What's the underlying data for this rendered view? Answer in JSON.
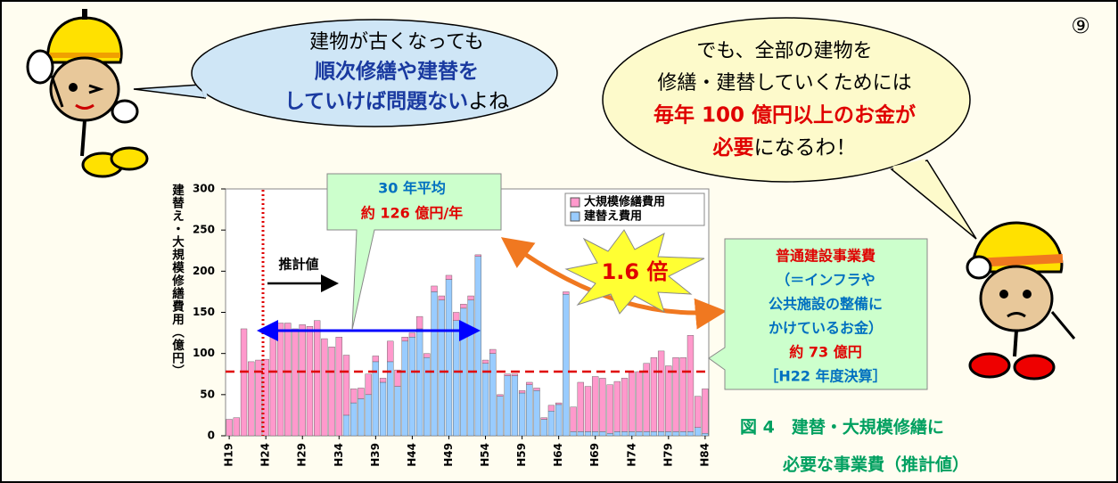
{
  "page_number": "⑨",
  "bubble_left": {
    "line1": "建物が古くなっても",
    "line2": "順次修繕や建替を",
    "line3_bold": "していけば問題ない",
    "line3_tail": "よね"
  },
  "bubble_right": {
    "line1": "でも、全部の建物を",
    "line2": "修繕・建替していくためには",
    "line3": "毎年 100 億円以上のお金が",
    "line4_bold": "必要",
    "line4_tail": "になるわ！"
  },
  "caption": [
    "図 4　建替・大規模修繕に",
    "必要な事業費（推計値）"
  ],
  "chart_data": {
    "type": "bar",
    "stacked": true,
    "y_label": "建替え・大規模修繕費用（億円）",
    "categories": [
      "H19",
      null,
      null,
      null,
      null,
      "H24",
      null,
      null,
      null,
      null,
      "H29",
      null,
      null,
      null,
      null,
      "H34",
      null,
      null,
      null,
      null,
      "H39",
      null,
      null,
      null,
      null,
      "H44",
      null,
      null,
      null,
      null,
      "H49",
      null,
      null,
      null,
      null,
      "H54",
      null,
      null,
      null,
      null,
      "H59",
      null,
      null,
      null,
      null,
      "H64",
      null,
      null,
      null,
      null,
      "H69",
      null,
      null,
      null,
      null,
      "H74",
      null,
      null,
      null,
      null,
      "H79",
      null,
      null,
      null,
      null,
      "H84"
    ],
    "series": [
      {
        "name": "大規模修繕費用",
        "color": "#ff99cc",
        "values": [
          20,
          22,
          130,
          90,
          92,
          93,
          135,
          137,
          137,
          130,
          135,
          133,
          140,
          118,
          108,
          120,
          73,
          17,
          13,
          25,
          7,
          5,
          25,
          20,
          5,
          5,
          15,
          5,
          7,
          5,
          5,
          10,
          5,
          5,
          2,
          4,
          5,
          2,
          2,
          2,
          3,
          3,
          3,
          2,
          7,
          2,
          3,
          30,
          60,
          55,
          67,
          65,
          59,
          61,
          65,
          73,
          73,
          83,
          90,
          98,
          80,
          90,
          90,
          117,
          38,
          54
        ]
      },
      {
        "name": "建替え費用",
        "color": "#99ccff",
        "values": [
          0,
          0,
          0,
          0,
          0,
          0,
          0,
          0,
          0,
          0,
          0,
          0,
          0,
          0,
          0,
          0,
          25,
          40,
          45,
          50,
          90,
          65,
          90,
          60,
          115,
          120,
          130,
          95,
          175,
          165,
          190,
          140,
          155,
          165,
          218,
          88,
          100,
          48,
          73,
          73,
          52,
          62,
          55,
          20,
          30,
          38,
          172,
          5,
          5,
          5,
          5,
          5,
          3,
          5,
          5,
          5,
          5,
          5,
          5,
          5,
          5,
          5,
          5,
          5,
          10,
          3
        ]
      }
    ],
    "ylim": [
      0,
      300
    ],
    "yticks": [
      0,
      50,
      100,
      150,
      200,
      250,
      300
    ],
    "reference_line": 78,
    "estimate_label": "推計値",
    "average_box": [
      "30 年平均",
      "約 126 億円/年"
    ],
    "ratio_label": "1.6 倍",
    "comparison_box": [
      "普通建設事業費",
      "（＝インフラや",
      "公共施設の整備に",
      "かけているお金）",
      "約 73 億円",
      "［H22 年度決算］"
    ]
  }
}
